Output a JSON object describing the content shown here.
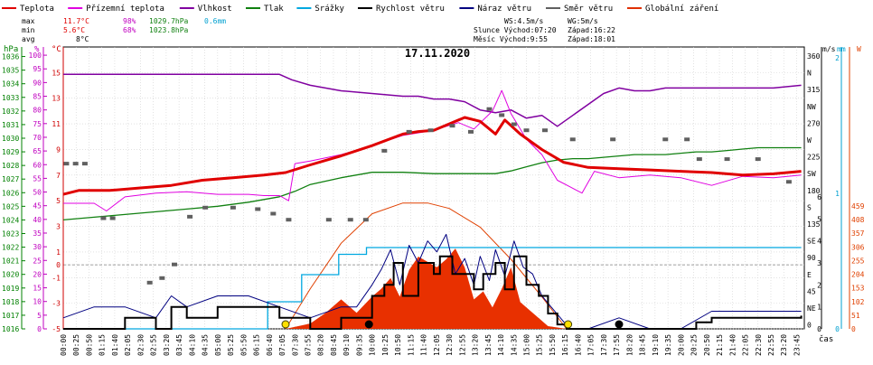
{
  "chart_data": {
    "type": "line",
    "title": "17.11.2020",
    "xlabel": "čas",
    "x_ticks": [
      "00:00",
      "00:25",
      "00:50",
      "01:15",
      "01:40",
      "02:05",
      "02:30",
      "02:55",
      "03:20",
      "03:45",
      "04:10",
      "04:35",
      "05:00",
      "05:25",
      "05:50",
      "06:15",
      "06:40",
      "07:05",
      "07:30",
      "07:55",
      "08:20",
      "08:45",
      "09:10",
      "09:35",
      "10:00",
      "10:25",
      "10:50",
      "11:15",
      "11:40",
      "12:05",
      "12:30",
      "12:55",
      "13:20",
      "13:45",
      "14:10",
      "14:35",
      "15:00",
      "15:25",
      "15:50",
      "16:15",
      "16:40",
      "17:05",
      "17:30",
      "17:55",
      "18:20",
      "18:45",
      "19:10",
      "19:35",
      "20:00",
      "20:25",
      "20:50",
      "21:15",
      "21:40",
      "22:05",
      "22:30",
      "22:55",
      "23:20",
      "23:45"
    ],
    "grid": true,
    "legend_position": "top",
    "axes": {
      "hpa": {
        "label": "hPa",
        "color": "#008000",
        "ticks": [
          1016,
          1017,
          1018,
          1019,
          1020,
          1021,
          1022,
          1023,
          1024,
          1025,
          1026,
          1027,
          1028,
          1029,
          1030,
          1031,
          1032,
          1033,
          1034,
          1035,
          1036
        ]
      },
      "pct": {
        "label": "%",
        "color": "#c000c0",
        "ticks": [
          0,
          5,
          10,
          15,
          20,
          25,
          30,
          35,
          40,
          45,
          50,
          55,
          60,
          65,
          70,
          75,
          80,
          85,
          90,
          95,
          100
        ]
      },
      "temp": {
        "label": "°C",
        "color": "#d00000",
        "ticks": [
          -5,
          -3,
          -1,
          0,
          1,
          3,
          5,
          7,
          9,
          11,
          13,
          15
        ]
      },
      "dir": {
        "ticks": [
          "360",
          "N",
          "315",
          "NW",
          "270",
          "W",
          "225",
          "SW",
          "180",
          "S",
          "135",
          "SE",
          "90",
          "E",
          "45",
          "NE",
          "0"
        ]
      },
      "wind": {
        "label": "m/s",
        "ticks": [
          0,
          1,
          2,
          3,
          4,
          5,
          6
        ]
      },
      "rain": {
        "label": "mm",
        "color": "#00a0d0",
        "ticks": [
          0,
          1,
          2
        ]
      },
      "solar": {
        "label": "W",
        "color": "#e04000",
        "ticks": [
          0,
          51,
          102,
          153,
          204,
          255,
          306,
          357,
          408,
          459
        ]
      }
    },
    "legend": [
      {
        "label": "Teplota",
        "color": "#e00000"
      },
      {
        "label": "Přízemní teplota",
        "color": "#e000e0"
      },
      {
        "label": "Vlhkost",
        "color": "#8000a0"
      },
      {
        "label": "Tlak",
        "color": "#108010"
      },
      {
        "label": "Srážky",
        "color": "#00a8e0"
      },
      {
        "label": "Rychlost větru",
        "color": "#000000"
      },
      {
        "label": "Náraz větru",
        "color": "#000080"
      },
      {
        "label": "Směr větru",
        "color": "#606060"
      },
      {
        "label": "Globální záření",
        "color": "#e03000"
      }
    ],
    "stats": {
      "max_label": "max",
      "max_temp": "11.7°C",
      "max_hum": "98%",
      "max_press": "1029.7hPa",
      "rain_total": "0.6mm",
      "min_label": "min",
      "min_temp": "5.6°C",
      "min_hum": "68%",
      "min_press": "1023.8hPa",
      "avg_label": "avg",
      "avg_temp": "8°C",
      "wind": "WS:4.5m/s",
      "gust": "WG:5m/s",
      "sun": "Slunce Východ:07:20",
      "sunset": "Západ:16:22",
      "moon": "Měsíc  Východ:9:55",
      "moonset": "Západ:18:01"
    },
    "series": {
      "temperature_c": {
        "x": [
          0,
          0.5,
          1.5,
          2.5,
          3.5,
          4.5,
          5.5,
          6.5,
          7.2,
          8,
          9,
          10,
          11,
          11.5,
          12,
          12.5,
          13,
          13.5,
          14,
          14.3,
          14.8,
          15.5,
          16.2,
          17,
          18,
          19,
          20,
          21,
          22,
          23,
          23.9
        ],
        "y": [
          5.5,
          5.8,
          5.8,
          6.0,
          6.2,
          6.6,
          6.8,
          7.0,
          7.2,
          7.8,
          8.5,
          9.3,
          10.2,
          10.4,
          10.5,
          11.0,
          11.5,
          11.2,
          10.2,
          11.3,
          10.2,
          9.0,
          8.0,
          7.6,
          7.5,
          7.4,
          7.3,
          7.2,
          7.0,
          7.1,
          7.3
        ]
      },
      "ground_temp_c": {
        "x": [
          0,
          0.5,
          1.0,
          1.4,
          2,
          3,
          4,
          5,
          6,
          6.5,
          7.0,
          7.3,
          7.5,
          8,
          9,
          10,
          11,
          12,
          12.8,
          13.3,
          13.9,
          14.2,
          14.5,
          15,
          15.5,
          16,
          16.4,
          16.8,
          17.2,
          18,
          19,
          20,
          21,
          22,
          23,
          23.9
        ],
        "y": [
          4.8,
          4.8,
          4.8,
          4.2,
          5.3,
          5.6,
          5.7,
          5.5,
          5.5,
          5.4,
          5.4,
          5.0,
          7.9,
          8.1,
          8.6,
          9.3,
          10.1,
          10.5,
          11.1,
          10.6,
          12.0,
          13.6,
          11.8,
          9.8,
          8.6,
          6.6,
          6.1,
          5.6,
          7.3,
          6.8,
          7.0,
          6.8,
          6.2,
          6.9,
          6.8,
          7.0
        ]
      },
      "humidity_pct": {
        "x": [
          0,
          1,
          2,
          3,
          4,
          5,
          6,
          7,
          7.4,
          8,
          9,
          10,
          11,
          11.5,
          12,
          12.5,
          13,
          13.5,
          14,
          14.5,
          15,
          15.5,
          16,
          16.5,
          17,
          17.5,
          18,
          18.5,
          19,
          19.5,
          20,
          21,
          22,
          23,
          23.9
        ],
        "y": [
          93,
          93,
          93,
          93,
          93,
          93,
          93,
          93,
          91,
          89,
          87,
          86,
          85,
          85,
          84,
          84,
          83,
          80,
          79,
          80,
          77,
          78,
          74,
          78,
          82,
          86,
          88,
          87,
          87,
          88,
          88,
          88,
          88,
          88,
          89
        ]
      },
      "pressure_hpa": {
        "x": [
          0,
          1,
          2,
          3,
          4,
          5,
          6,
          7,
          7.5,
          8,
          9,
          10,
          11,
          12,
          13,
          14,
          14.5,
          15,
          15.5,
          16,
          16.5,
          17,
          17.5,
          18,
          18.5,
          19,
          19.5,
          20,
          20.5,
          21,
          21.5,
          22,
          22.5,
          23,
          23.9
        ],
        "y": [
          1024.0,
          1024.2,
          1024.4,
          1024.6,
          1024.8,
          1025.0,
          1025.3,
          1025.7,
          1026.1,
          1026.6,
          1027.1,
          1027.5,
          1027.5,
          1027.4,
          1027.4,
          1027.4,
          1027.6,
          1027.9,
          1028.2,
          1028.4,
          1028.5,
          1028.5,
          1028.6,
          1028.7,
          1028.8,
          1028.8,
          1028.8,
          1028.9,
          1029.0,
          1029.0,
          1029.1,
          1029.2,
          1029.3,
          1029.3,
          1029.3
        ]
      },
      "rain_total_mm": {
        "x": [
          0,
          6.6,
          6.62,
          7.7,
          7.72,
          8.9,
          8.92,
          9.8,
          9.82,
          23.9
        ],
        "y": [
          0,
          0,
          0.2,
          0.2,
          0.4,
          0.4,
          0.55,
          0.55,
          0.6,
          0.6
        ]
      },
      "wind_speed_ms": {
        "x": [
          0,
          1,
          2,
          3,
          3.5,
          4,
          5,
          6,
          7,
          8,
          9,
          9.5,
          10,
          10.4,
          10.7,
          11,
          11.5,
          12,
          12.2,
          12.6,
          13,
          13.3,
          13.6,
          14,
          14.3,
          14.6,
          15,
          15.4,
          15.7,
          16,
          16.3,
          16.6,
          17,
          18,
          19,
          20,
          20.5,
          21,
          22,
          23,
          23.9
        ],
        "y": [
          0,
          0,
          0.5,
          0,
          1,
          0.5,
          1,
          1,
          0.5,
          0,
          0.5,
          0.5,
          1.5,
          2,
          3,
          1.5,
          3,
          2.5,
          3.3,
          2.5,
          2.5,
          1.8,
          2.5,
          3,
          1.8,
          3.3,
          2,
          1.5,
          0.7,
          0.2,
          0,
          0,
          0,
          0,
          0,
          0,
          0.3,
          0.5,
          0.5,
          0.5,
          0.6
        ]
      },
      "wind_gust_ms": {
        "x": [
          0,
          1,
          2,
          3,
          3.5,
          4,
          5,
          6,
          7,
          8,
          9,
          9.5,
          10,
          10.3,
          10.6,
          10.9,
          11.2,
          11.5,
          11.8,
          12.1,
          12.4,
          12.7,
          13,
          13.3,
          13.5,
          13.8,
          14,
          14.3,
          14.6,
          14.9,
          15.2,
          15.5,
          15.8,
          16.1,
          16.4,
          17,
          18,
          19,
          20,
          21,
          22,
          23,
          23.9
        ],
        "y": [
          0.5,
          1,
          1,
          0.5,
          1.5,
          1,
          1.5,
          1.5,
          1,
          0.5,
          1,
          1,
          2,
          2.7,
          3.6,
          2,
          3.8,
          3,
          4,
          3.5,
          4.3,
          2.5,
          3.2,
          2,
          3.3,
          2.2,
          3.6,
          2.4,
          4,
          2.8,
          2.5,
          1.5,
          1,
          0.5,
          0,
          0,
          0.5,
          0,
          0,
          0.8,
          0.8,
          0.8,
          0.8
        ]
      },
      "wind_dir_deg": {
        "x": [
          0.1,
          0.4,
          0.7,
          1.3,
          1.6,
          2.8,
          3.2,
          3.6,
          4.1,
          4.6,
          5.5,
          6.3,
          6.8,
          7.3,
          8.6,
          9.3,
          9.8,
          10.4,
          11.2,
          11.9,
          12.6,
          13.2,
          13.8,
          14.2,
          14.6,
          15.0,
          15.6,
          16.5,
          17.8,
          19.5,
          20.2,
          20.6,
          21.5,
          22.5,
          23.5
        ],
        "y": [
          218,
          218,
          218,
          146,
          146,
          61,
          67,
          85,
          148,
          160,
          160,
          158,
          152,
          144,
          144,
          144,
          144,
          235,
          260,
          262,
          268,
          260,
          290,
          282,
          270,
          262,
          262,
          250,
          250,
          250,
          250,
          224,
          224,
          224,
          194
        ]
      },
      "solar_wm2": {
        "x": [
          7.2,
          8,
          8.5,
          9,
          9.5,
          10,
          10.3,
          10.6,
          10.9,
          11.2,
          11.5,
          11.8,
          12.1,
          12.4,
          12.7,
          13,
          13.3,
          13.6,
          13.9,
          14.2,
          14.5,
          14.8,
          15.1,
          15.4,
          15.7,
          16,
          16.3
        ],
        "y": [
          0,
          20,
          60,
          110,
          60,
          120,
          150,
          190,
          120,
          220,
          270,
          250,
          230,
          260,
          300,
          230,
          110,
          140,
          80,
          150,
          230,
          100,
          70,
          40,
          10,
          5,
          0
        ]
      },
      "clear_sky_solar_wm2": {
        "x": [
          7.2,
          8,
          9,
          10,
          11,
          11.8,
          12.5,
          13.5,
          14.5,
          15.5,
          16.3
        ],
        "y": [
          0,
          150,
          320,
          430,
          470,
          470,
          450,
          380,
          260,
          120,
          0
        ]
      }
    },
    "markers": [
      {
        "type": "sunrise",
        "x": 7.2
      },
      {
        "type": "moonrise",
        "x": 9.9
      },
      {
        "type": "sunset",
        "x": 16.35
      },
      {
        "type": "moonset",
        "x": 18.0
      }
    ]
  }
}
